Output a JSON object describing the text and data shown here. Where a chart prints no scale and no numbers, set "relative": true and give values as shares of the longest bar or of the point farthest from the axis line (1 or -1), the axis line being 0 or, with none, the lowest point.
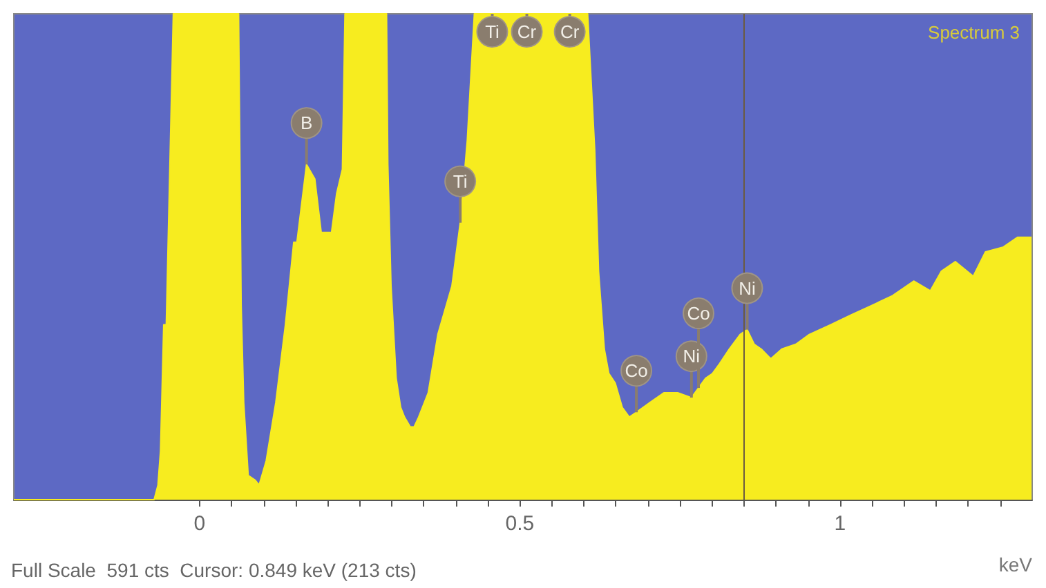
{
  "chart_data": {
    "type": "area",
    "title": "Spectrum 3",
    "xlabel": "keV",
    "relative": true,
    "x": [
      -0.29,
      -0.071,
      -0.065,
      -0.061,
      -0.056,
      -0.052,
      -0.041,
      0.061,
      0.065,
      0.069,
      0.076,
      0.087,
      0.093,
      0.104,
      0.119,
      0.134,
      0.147,
      0.152,
      0.167,
      0.18,
      0.19,
      0.206,
      0.214,
      0.223,
      0.227,
      0.281,
      0.292,
      0.294,
      0.299,
      0.307,
      0.314,
      0.32,
      0.329,
      0.335,
      0.342,
      0.357,
      0.372,
      0.394,
      0.407,
      0.418,
      0.429,
      0.606,
      0.617,
      0.623,
      0.632,
      0.639,
      0.649,
      0.66,
      0.671,
      0.682,
      0.703,
      0.725,
      0.747,
      0.768,
      0.779,
      0.79,
      0.801,
      0.812,
      0.827,
      0.844,
      0.855,
      0.866,
      0.877,
      0.892,
      0.909,
      0.931,
      0.952,
      0.985,
      1.017,
      1.05,
      1.082,
      1.115,
      1.141,
      1.158,
      1.18,
      1.208,
      1.227,
      1.255,
      1.277,
      1.299
    ],
    "series": [
      {
        "color": "#f7ec1f",
        "values": [
          0,
          0,
          0.03,
          0.1,
          0.36,
          0.36,
          1,
          1,
          0.4,
          0.2,
          0.05,
          0.04,
          0.03,
          0.08,
          0.2,
          0.36,
          0.53,
          0.53,
          0.69,
          0.66,
          0.55,
          0.55,
          0.63,
          0.68,
          1,
          1,
          1,
          0.69,
          0.44,
          0.25,
          0.19,
          0.17,
          0.15,
          0.15,
          0.17,
          0.22,
          0.34,
          0.44,
          0.57,
          0.74,
          1,
          1,
          0.72,
          0.47,
          0.31,
          0.26,
          0.24,
          0.19,
          0.17,
          0.18,
          0.2,
          0.22,
          0.22,
          0.21,
          0.23,
          0.25,
          0.26,
          0.28,
          0.31,
          0.34,
          0.35,
          0.32,
          0.31,
          0.29,
          0.31,
          0.32,
          0.34,
          0.36,
          0.38,
          0.4,
          0.42,
          0.45,
          0.43,
          0.47,
          0.49,
          0.46,
          0.51,
          0.52,
          0.54,
          0.54
        ]
      }
    ],
    "xlim": [
      -0.29,
      1.3
    ],
    "xticks": [
      0,
      {
        "value": 0.05,
        "label": null
      },
      {
        "value": 0.1,
        "label": null
      },
      {
        "value": 0.15,
        "label": null
      },
      {
        "value": 0.2,
        "label": null
      },
      {
        "value": 0.25,
        "label": null
      },
      {
        "value": 0.3,
        "label": null
      },
      {
        "value": 0.35,
        "label": null
      },
      {
        "value": 0.4,
        "label": null
      },
      {
        "value": 0.45,
        "label": null
      },
      0.5,
      {
        "value": 0.55,
        "label": null
      },
      {
        "value": 0.6,
        "label": null
      },
      {
        "value": 0.65,
        "label": null
      },
      {
        "value": 0.7,
        "label": null
      },
      {
        "value": 0.75,
        "label": null
      },
      {
        "value": 0.8,
        "label": null
      },
      {
        "value": 0.85,
        "label": null
      },
      {
        "value": 0.9,
        "label": null
      },
      {
        "value": 0.95,
        "label": null
      },
      1,
      {
        "value": 1.05,
        "label": null
      },
      {
        "value": 1.1,
        "label": null
      },
      {
        "value": 1.15,
        "label": null
      },
      {
        "value": 1.2,
        "label": null
      },
      {
        "value": 1.25,
        "label": null
      }
    ],
    "ref_lines": [
      {
        "axis": "x",
        "value": 0.849,
        "color": "#6a5a40"
      }
    ],
    "annotations": [
      "Full Scale  591 cts  Cursor: 0.849 keV (213 cts)",
      {
        "text": "B",
        "x": 0.167,
        "y": 0.69
      },
      {
        "text": "Ti",
        "x": 0.407,
        "y": 0.57
      },
      {
        "text": "Ti",
        "x": 0.457,
        "y": 1
      },
      {
        "text": "Cr",
        "x": 0.511,
        "y": 1
      },
      {
        "text": "Cr",
        "x": 0.578,
        "y": 1
      },
      {
        "text": "Co",
        "x": 0.682,
        "y": 0.18
      },
      {
        "text": "Ni",
        "x": 0.768,
        "y": 0.21
      },
      {
        "text": "Co",
        "x": 0.779,
        "y": 0.23
      },
      {
        "text": "Ni",
        "x": 0.855,
        "y": 0.35
      }
    ],
    "grid": false
  }
}
